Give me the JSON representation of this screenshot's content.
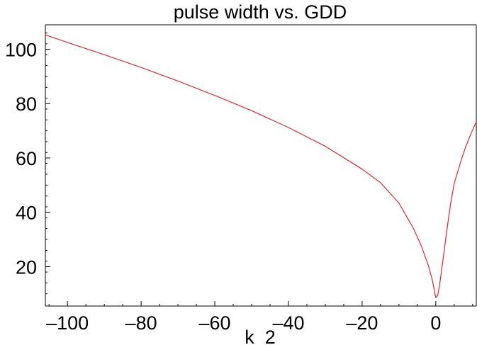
{
  "chart_data": {
    "type": "line",
    "title": "pulse width vs. GDD",
    "xlabel": "k_2",
    "ylabel": "",
    "xlim": [
      -106,
      11
    ],
    "ylim": [
      5.5,
      109
    ],
    "grid": false,
    "xticks": [
      -100,
      -80,
      -60,
      -40,
      -20,
      0
    ],
    "xtick_labels": [
      "–100",
      "–80",
      "–60",
      "–40",
      "–20",
      "0"
    ],
    "yticks": [
      20,
      40,
      60,
      80,
      100
    ],
    "ytick_labels": [
      "20",
      "40",
      "60",
      "80",
      "100"
    ],
    "colors": {
      "line": "#e8262a",
      "axes": "#000000"
    },
    "series": [
      {
        "name": "",
        "x": [
          -106,
          -100,
          -90,
          -80,
          -70,
          -60,
          -50,
          -40,
          -30,
          -20,
          -15,
          -10,
          -6,
          -4,
          -2,
          -1,
          -0.5,
          0,
          0.5,
          1,
          2,
          3,
          4,
          5,
          6,
          7,
          8,
          9,
          10,
          11
        ],
        "y": [
          105.3,
          102.5,
          98.0,
          93.3,
          88.3,
          83.0,
          77.4,
          71.2,
          64.3,
          55.9,
          50.9,
          43.4,
          33.9,
          27.9,
          20.4,
          15.4,
          12.1,
          8.6,
          9.3,
          12.9,
          22.9,
          33.3,
          42.9,
          50.6,
          55.1,
          59.6,
          63.6,
          67.1,
          70.3,
          73.3
        ]
      }
    ]
  }
}
